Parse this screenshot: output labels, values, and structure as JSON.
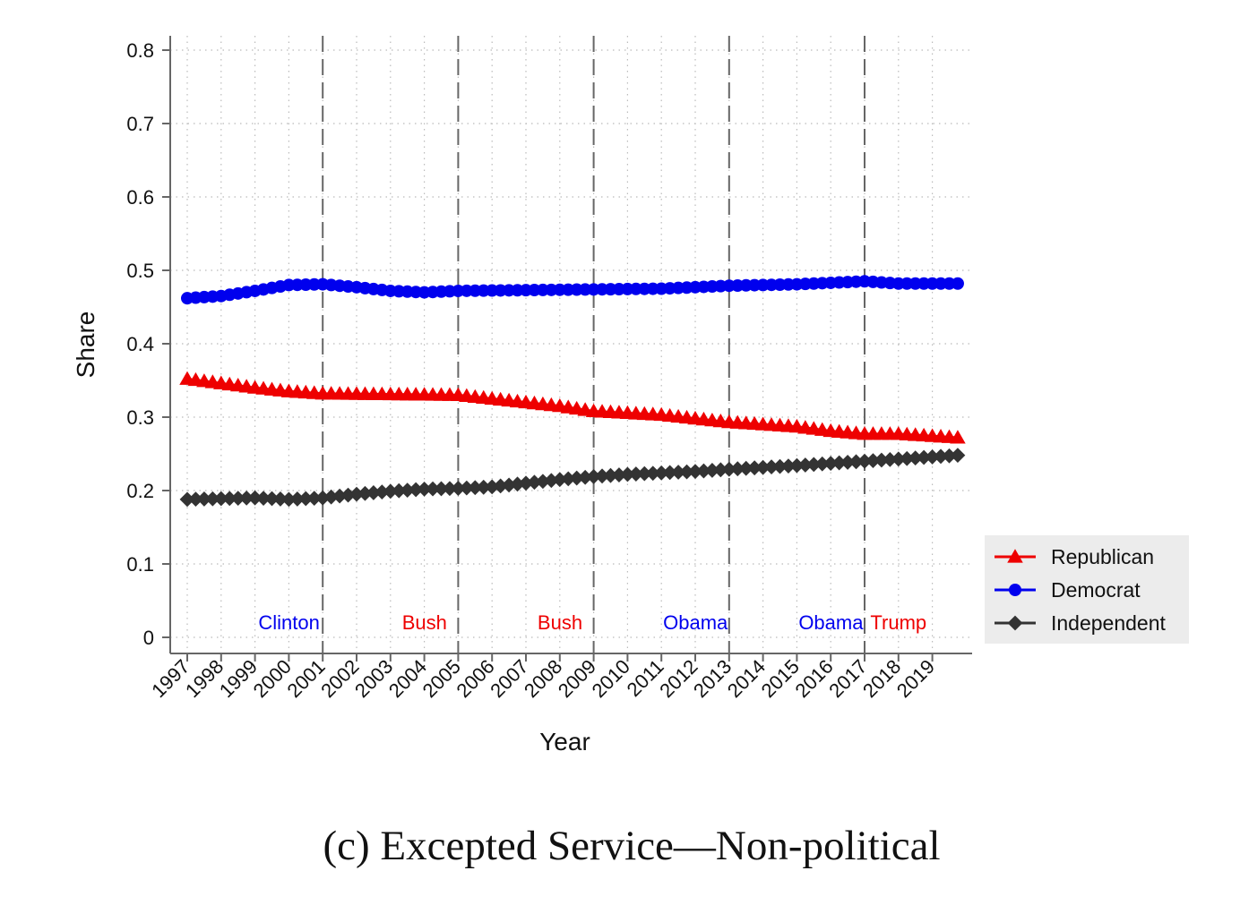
{
  "caption": "(c) Excepted Service—Non-political",
  "chart_data": {
    "type": "line",
    "xlabel": "Year",
    "ylabel": "Share",
    "ylim": [
      0,
      0.8
    ],
    "y_ticks": [
      0,
      0.1,
      0.2,
      0.3,
      0.4,
      0.5,
      0.6,
      0.7,
      0.8
    ],
    "y_tick_labels": [
      "0",
      "0.1",
      "0.2",
      "0.3",
      "0.4",
      "0.5",
      "0.6",
      "0.7",
      "0.8"
    ],
    "x_start": 1997,
    "x_ticks": [
      "1997",
      "1998",
      "1999",
      "2000",
      "2001",
      "2002",
      "2003",
      "2004",
      "2005",
      "2006",
      "2007",
      "2008",
      "2009",
      "2010",
      "2011",
      "2012",
      "2013",
      "2014",
      "2015",
      "2016",
      "2017",
      "2018",
      "2019"
    ],
    "grid": true,
    "legend_position": "right",
    "term_boundaries": [
      2001,
      2005,
      2009,
      2013,
      2017
    ],
    "terms": [
      {
        "label": "Clinton",
        "year": 1999,
        "color": "#0000ee"
      },
      {
        "label": "Bush",
        "year": 2003,
        "color": "#ee0000"
      },
      {
        "label": "Bush",
        "year": 2007,
        "color": "#ee0000"
      },
      {
        "label": "Obama",
        "year": 2011,
        "color": "#0000ee"
      },
      {
        "label": "Obama",
        "year": 2015,
        "color": "#0000ee"
      },
      {
        "label": "Trump",
        "year": 2018,
        "color": "#ee0000"
      }
    ],
    "series": [
      {
        "name": "Republican",
        "color": "#ee0000",
        "marker": "triangle",
        "start": 1997,
        "end": 2019.75,
        "keypoints": [
          [
            1997,
            0.352
          ],
          [
            1999,
            0.34
          ],
          [
            2000,
            0.335
          ],
          [
            2001,
            0.332
          ],
          [
            2003,
            0.331
          ],
          [
            2005,
            0.33
          ],
          [
            2006,
            0.325
          ],
          [
            2008,
            0.315
          ],
          [
            2009,
            0.308
          ],
          [
            2011,
            0.303
          ],
          [
            2013,
            0.293
          ],
          [
            2015,
            0.287
          ],
          [
            2016,
            0.281
          ],
          [
            2017,
            0.277
          ],
          [
            2018,
            0.277
          ],
          [
            2019.75,
            0.272
          ]
        ]
      },
      {
        "name": "Democrat",
        "color": "#0000ee",
        "marker": "circle",
        "start": 1997,
        "end": 2019.75,
        "keypoints": [
          [
            1997,
            0.462
          ],
          [
            1998,
            0.465
          ],
          [
            1999,
            0.472
          ],
          [
            2000,
            0.48
          ],
          [
            2001,
            0.481
          ],
          [
            2002,
            0.477
          ],
          [
            2003,
            0.472
          ],
          [
            2004,
            0.47
          ],
          [
            2005,
            0.472
          ],
          [
            2007,
            0.473
          ],
          [
            2009,
            0.474
          ],
          [
            2011,
            0.475
          ],
          [
            2013,
            0.479
          ],
          [
            2015,
            0.481
          ],
          [
            2016,
            0.483
          ],
          [
            2017,
            0.485
          ],
          [
            2018,
            0.482
          ],
          [
            2019.75,
            0.482
          ]
        ]
      },
      {
        "name": "Independent",
        "color": "#333333",
        "marker": "diamond",
        "start": 1997,
        "end": 2019.75,
        "keypoints": [
          [
            1997,
            0.188
          ],
          [
            1999,
            0.19
          ],
          [
            2000,
            0.188
          ],
          [
            2001,
            0.19
          ],
          [
            2002,
            0.195
          ],
          [
            2003,
            0.199
          ],
          [
            2004,
            0.202
          ],
          [
            2005,
            0.203
          ],
          [
            2006,
            0.205
          ],
          [
            2007,
            0.21
          ],
          [
            2008,
            0.215
          ],
          [
            2009,
            0.219
          ],
          [
            2010,
            0.222
          ],
          [
            2012,
            0.226
          ],
          [
            2013,
            0.229
          ],
          [
            2015,
            0.234
          ],
          [
            2017,
            0.24
          ],
          [
            2019.75,
            0.248
          ]
        ]
      }
    ]
  }
}
